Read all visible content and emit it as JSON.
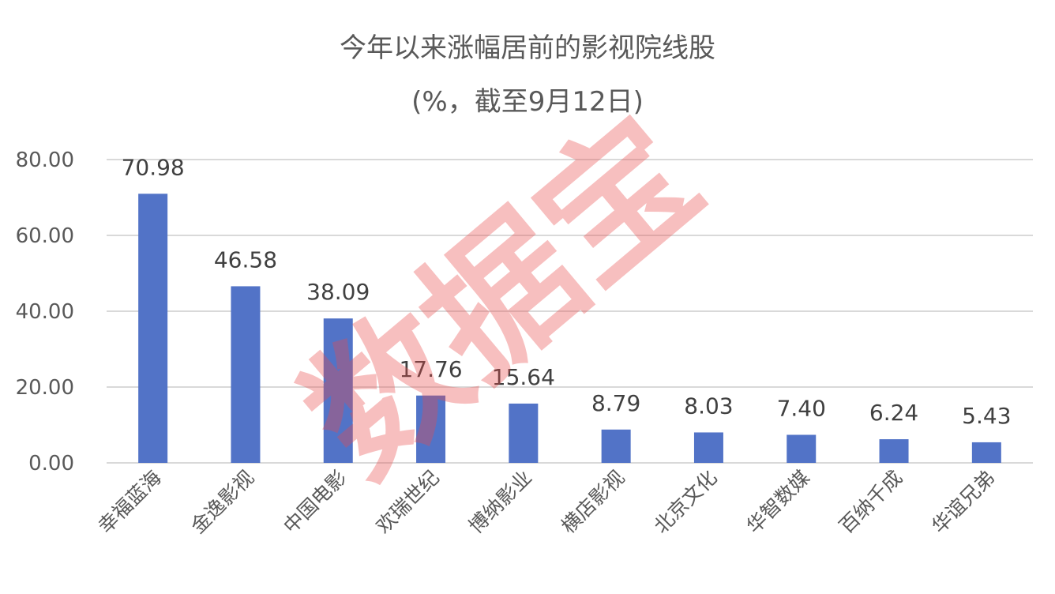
{
  "chart_data": {
    "type": "bar",
    "title": "今年以来涨幅居前的影视院线股",
    "subtitle": "(%，截至9月12日)",
    "categories": [
      "幸福蓝海",
      "金逸影视",
      "中国电影",
      "欢瑞世纪",
      "博纳影业",
      "横店影视",
      "北京文化",
      "华智数媒",
      "百纳千成",
      "华谊兄弟"
    ],
    "values": [
      70.98,
      46.58,
      38.09,
      17.76,
      15.64,
      8.79,
      8.03,
      7.4,
      6.24,
      5.43
    ],
    "value_labels": [
      "70.98",
      "46.58",
      "38.09",
      "17.76",
      "15.64",
      "8.79",
      "8.03",
      "7.40",
      "6.24",
      "5.43"
    ],
    "xlabel": "",
    "ylabel": "",
    "ylim": [
      0,
      80
    ],
    "yticks": [
      "0.00",
      "20.00",
      "40.00",
      "60.00",
      "80.00"
    ],
    "grid": true,
    "legend": "none",
    "bar_color": "#5273C7"
  },
  "watermark": "数据宝"
}
